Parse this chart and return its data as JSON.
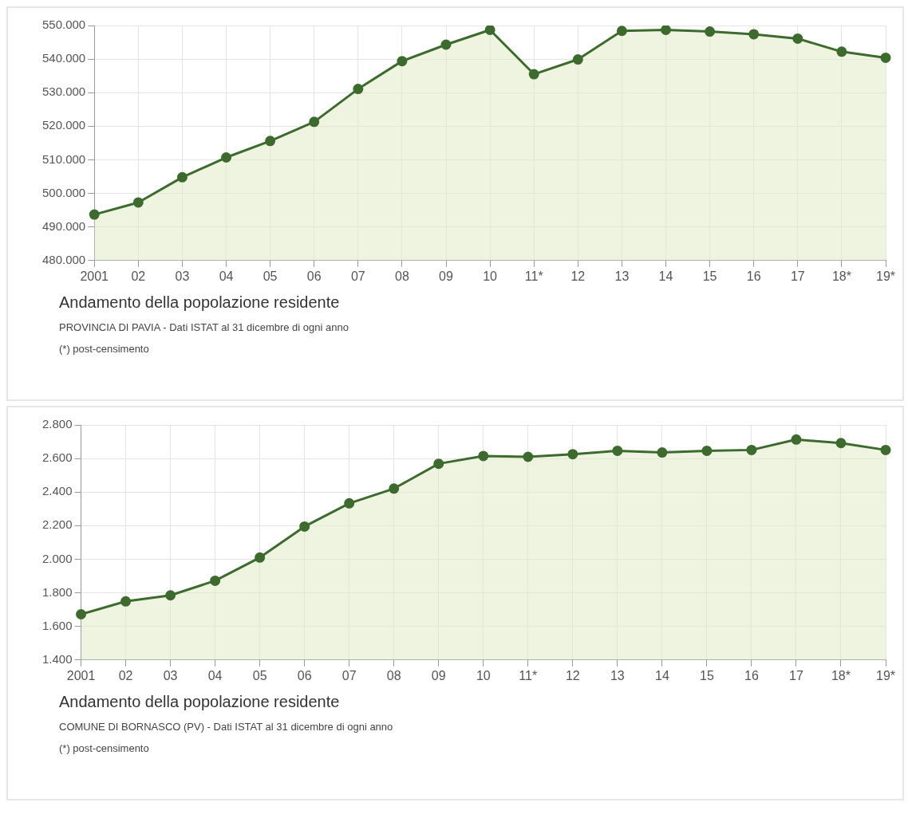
{
  "chart_data": [
    {
      "type": "area",
      "title": "Andamento della popolazione residente",
      "subtitle": "PROVINCIA DI PAVIA - Dati ISTAT al 31 dicembre di ogni anno",
      "annotations": [
        "(*) post-censimento"
      ],
      "categories": [
        "2001",
        "02",
        "03",
        "04",
        "05",
        "06",
        "07",
        "08",
        "09",
        "10",
        "11*",
        "12",
        "13",
        "14",
        "15",
        "16",
        "17",
        "18*",
        "19*"
      ],
      "series": [
        {
          "color": "#3d6b2e",
          "values": [
            493700,
            497300,
            504800,
            510700,
            515600,
            521300,
            531100,
            539400,
            544300,
            548700,
            535500,
            539900,
            548400,
            548700,
            548200,
            547400,
            546100,
            542200,
            540400
          ]
        }
      ],
      "ylim": [
        480000,
        550000
      ],
      "yticks": [
        {
          "value": 480000,
          "label": "480.000"
        },
        {
          "value": 490000,
          "label": "490.000"
        },
        {
          "value": 500000,
          "label": "500.000"
        },
        {
          "value": 510000,
          "label": "510.000"
        },
        {
          "value": 520000,
          "label": "520.000"
        },
        {
          "value": 530000,
          "label": "530.000"
        },
        {
          "value": 540000,
          "label": "540.000"
        },
        {
          "value": 550000,
          "label": "550.000"
        }
      ],
      "grid": true,
      "marker": "circle",
      "line_style": "solid",
      "legend": false
    },
    {
      "type": "area",
      "title": "Andamento della popolazione residente",
      "subtitle": "COMUNE DI BORNASCO (PV) - Dati ISTAT al 31 dicembre di ogni anno",
      "annotations": [
        "(*) post-censimento"
      ],
      "categories": [
        "2001",
        "02",
        "03",
        "04",
        "05",
        "06",
        "07",
        "08",
        "09",
        "10",
        "11*",
        "12",
        "13",
        "14",
        "15",
        "16",
        "17",
        "18*",
        "19*"
      ],
      "series": [
        {
          "color": "#3d6b2e",
          "values": [
            1672,
            1749,
            1785,
            1872,
            2010,
            2195,
            2333,
            2421,
            2569,
            2615,
            2610,
            2626,
            2646,
            2636,
            2646,
            2651,
            2713,
            2692,
            2651
          ]
        }
      ],
      "ylim": [
        1400,
        2800
      ],
      "yticks": [
        {
          "value": 1400,
          "label": "1.400"
        },
        {
          "value": 1600,
          "label": "1.600"
        },
        {
          "value": 1800,
          "label": "1.800"
        },
        {
          "value": 2000,
          "label": "2.000"
        },
        {
          "value": 2200,
          "label": "2.200"
        },
        {
          "value": 2400,
          "label": "2.400"
        },
        {
          "value": 2600,
          "label": "2.600"
        },
        {
          "value": 2800,
          "label": "2.800"
        }
      ],
      "grid": true,
      "marker": "circle",
      "line_style": "solid",
      "legend": false
    }
  ]
}
